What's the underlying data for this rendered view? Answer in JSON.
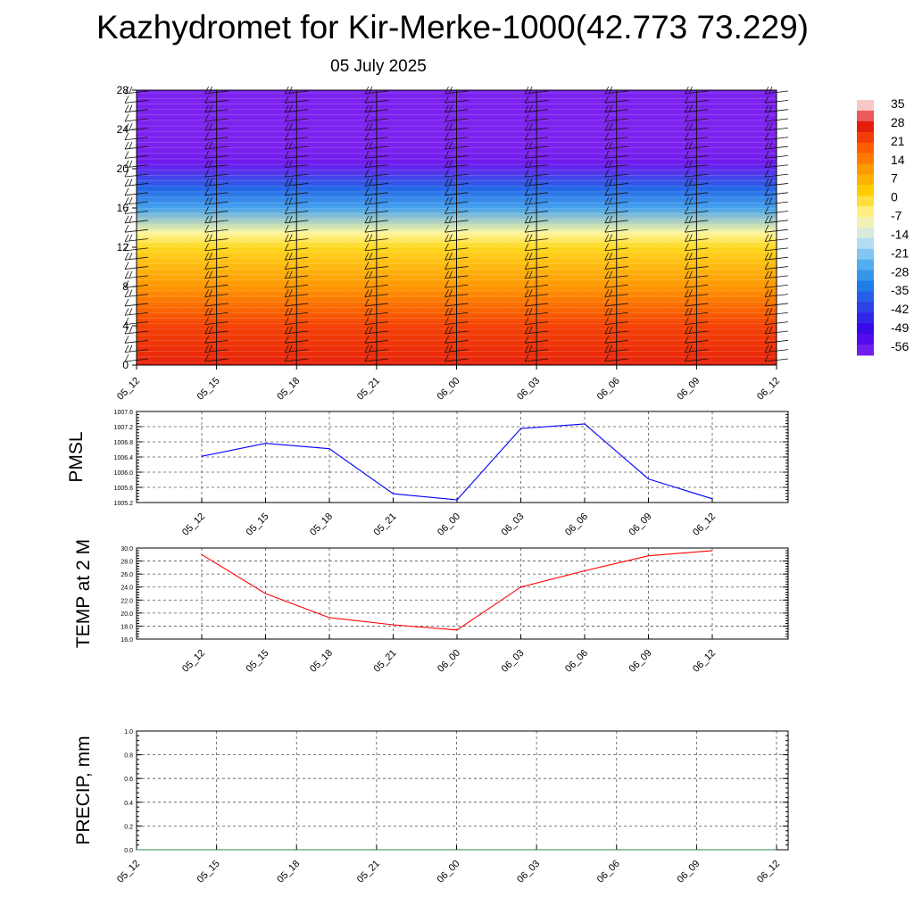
{
  "title": "Kazhydromet for Kir-Merke-1000(42.773 73.229)",
  "subtitle": "05 July 2025",
  "chart_data": [
    {
      "type": "heatmap",
      "name": "vertical temperature cross-section with wind barbs",
      "x_ticks": [
        "05_12",
        "05_15",
        "05_18",
        "05_21",
        "06_00",
        "06_03",
        "06_06",
        "06_09",
        "06_12"
      ],
      "y_ticks": [
        0,
        4,
        8,
        12,
        16,
        20,
        24,
        28
      ],
      "ylim": [
        0,
        28
      ],
      "colorbar_labels": [
        "35",
        "28",
        "21",
        "14",
        "7",
        "0",
        "-7",
        "-14",
        "-21",
        "-28",
        "-35",
        "-42",
        "-49",
        "-56"
      ],
      "colorbar_range": [
        -63,
        42
      ],
      "colorbar_colors": [
        "#ffffff",
        "#e01010",
        "#ff5a00",
        "#ff9a00",
        "#ffd200",
        "#fff6a0",
        "#c8e6f2",
        "#58b4f0",
        "#1e7ee6",
        "#2c3ee8",
        "#3c00e8",
        "#8426f0"
      ],
      "level_temps": [
        {
          "y": 0,
          "t": 30
        },
        {
          "y": 4,
          "t": 26
        },
        {
          "y": 8,
          "t": 14
        },
        {
          "y": 12,
          "t": 2
        },
        {
          "y": 13.5,
          "t": -6
        },
        {
          "y": 16,
          "t": -28
        },
        {
          "y": 18,
          "t": -38
        },
        {
          "y": 20.5,
          "t": -60
        },
        {
          "y": 22,
          "t": -62
        },
        {
          "y": 28,
          "t": -62
        }
      ]
    },
    {
      "type": "line",
      "ylabel": "PMSL",
      "x_ticks": [
        "05_12",
        "05_15",
        "05_18",
        "05_21",
        "06_00",
        "06_03",
        "06_06",
        "06_09",
        "06_12"
      ],
      "y_ticks": [
        "1005.2",
        "1005.6",
        "1006.0",
        "1006.4",
        "1006.8",
        "1007.2",
        "1007.6"
      ],
      "ylim": [
        1005.2,
        1007.6
      ],
      "color": "#0000ff",
      "values": [
        1006.42,
        1006.76,
        1006.62,
        1005.43,
        1005.27,
        1007.15,
        1007.27,
        1005.82,
        1005.3
      ],
      "grid": true
    },
    {
      "type": "line",
      "ylabel": "TEMP at 2 M",
      "x_ticks": [
        "05_12",
        "05_15",
        "05_18",
        "05_21",
        "06_00",
        "06_03",
        "06_06",
        "06_09",
        "06_12"
      ],
      "y_ticks": [
        "16.0",
        "18.0",
        "20.0",
        "22.0",
        "24.0",
        "26.0",
        "28.0",
        "30.0"
      ],
      "ylim": [
        16,
        30
      ],
      "color": "#ff0000",
      "values": [
        29.0,
        23.0,
        19.3,
        18.2,
        17.4,
        24.0,
        26.5,
        28.8,
        29.6
      ],
      "grid": true
    },
    {
      "type": "line",
      "ylabel": "PRECIP, mm",
      "x_ticks": [
        "05_12",
        "05_15",
        "05_18",
        "05_21",
        "06_00",
        "06_03",
        "06_06",
        "06_09",
        "06_12"
      ],
      "y_ticks": [
        "0.0",
        "0.2",
        "0.4",
        "0.6",
        "0.8",
        "1.0"
      ],
      "ylim": [
        0,
        1
      ],
      "color": "#2e8b57",
      "values": [
        0,
        0,
        0,
        0,
        0,
        0,
        0,
        0,
        0
      ],
      "grid": true
    }
  ]
}
